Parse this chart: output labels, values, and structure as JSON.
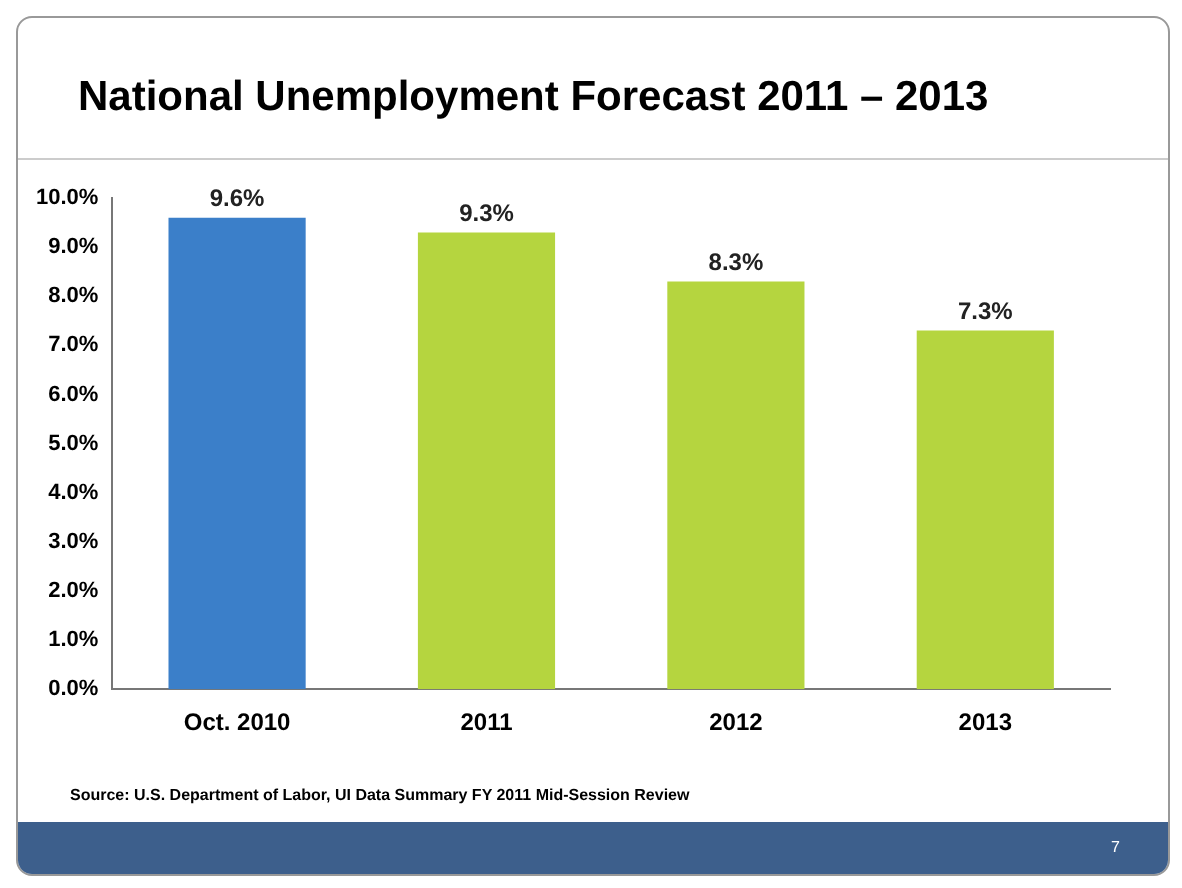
{
  "chart_data": {
    "type": "bar",
    "title": "National Unemployment Forecast 2011 – 2013",
    "categories": [
      "Oct. 2010",
      "2011",
      "2012",
      "2013"
    ],
    "values": [
      9.6,
      9.3,
      8.3,
      7.3
    ],
    "colors": [
      "#3b7fc9",
      "#b5d53f",
      "#b5d53f",
      "#b5d53f"
    ],
    "value_labels": [
      "9.6%",
      "9.3%",
      "8.3%",
      "7.3%"
    ],
    "ylim": [
      0,
      10
    ],
    "yticks": [
      {
        "value": 0,
        "label": "0.0%"
      },
      {
        "value": 1,
        "label": "1.0%"
      },
      {
        "value": 2,
        "label": "2.0%"
      },
      {
        "value": 3,
        "label": "3.0%"
      },
      {
        "value": 4,
        "label": "4.0%"
      },
      {
        "value": 5,
        "label": "5.0%"
      },
      {
        "value": 6,
        "label": "6.0%"
      },
      {
        "value": 7,
        "label": "7.0%"
      },
      {
        "value": 8,
        "label": "8.0%"
      },
      {
        "value": 9,
        "label": "9.0%"
      },
      {
        "value": 10,
        "label": "10.0%"
      }
    ],
    "grid": false,
    "annotations": [
      "Source: U.S. Department of Labor, UI Data Summary FY 2011 Mid-Session Review",
      "7"
    ]
  }
}
